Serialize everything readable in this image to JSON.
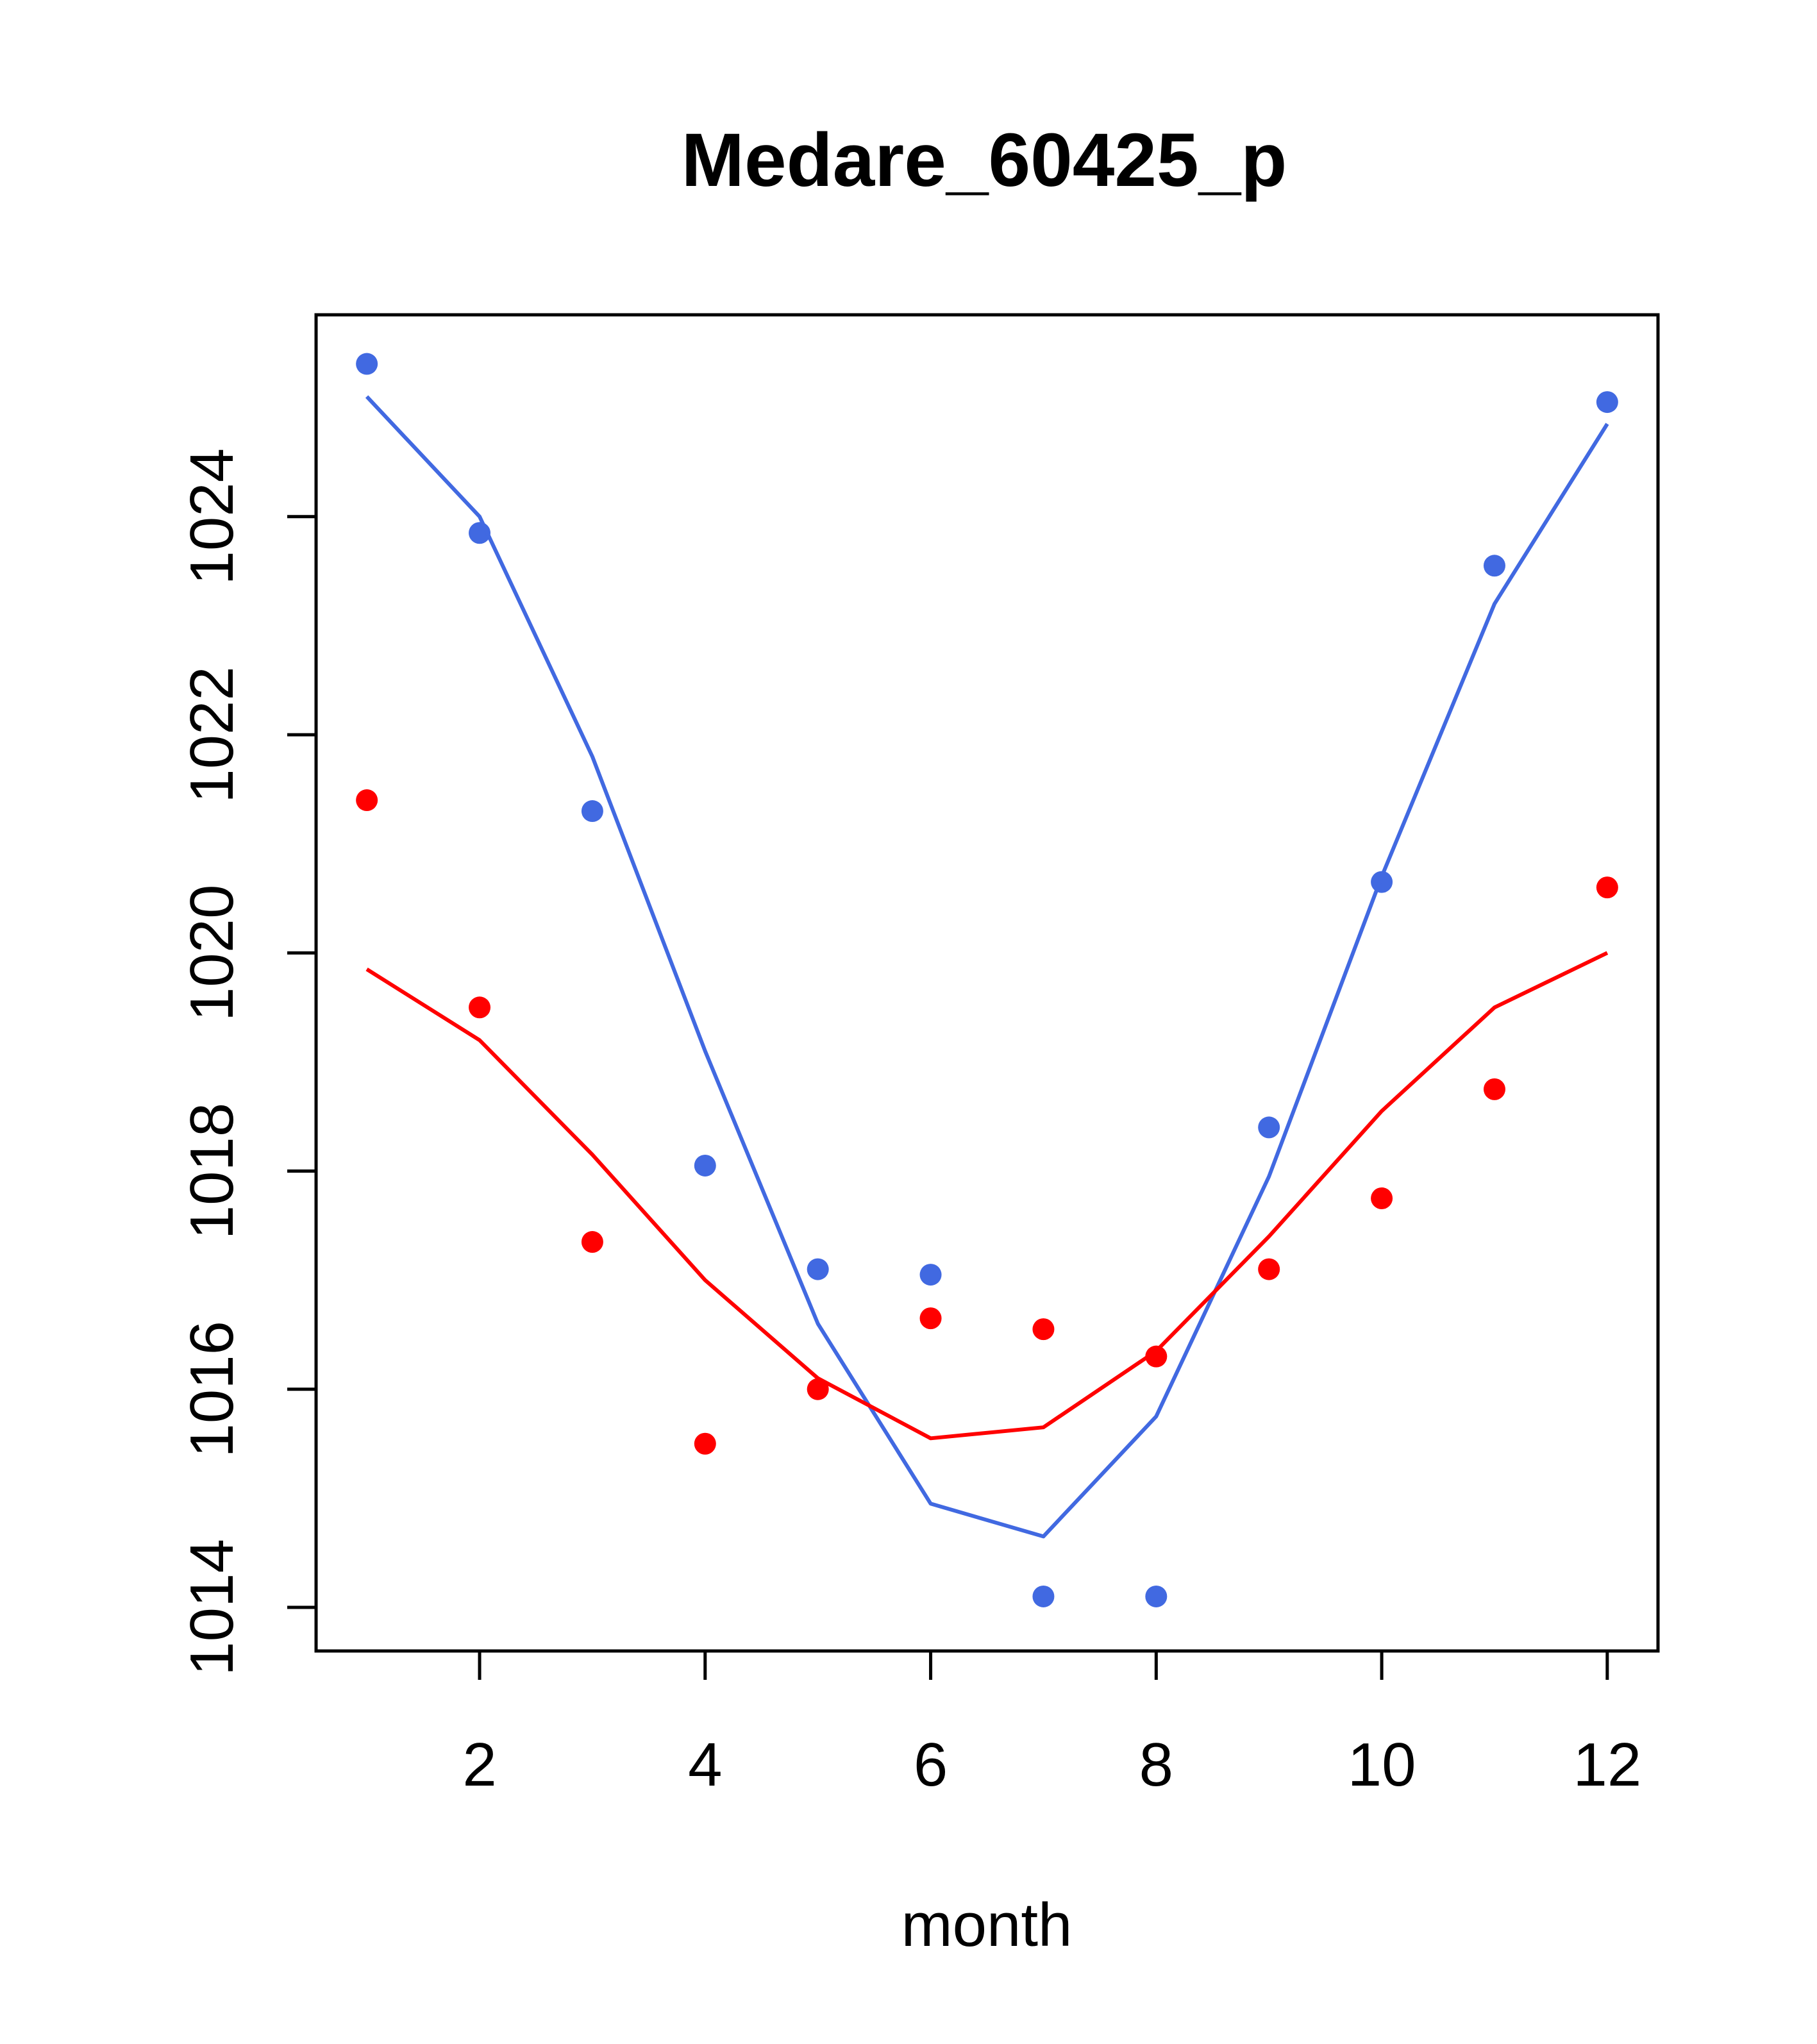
{
  "chart_data": {
    "type": "scatter",
    "title": "Medare_60425_p",
    "xlabel": "month",
    "ylabel": "",
    "xlim": [
      0.55,
      12.45
    ],
    "ylim": [
      1013.6,
      1025.85
    ],
    "x_ticks": [
      2,
      4,
      6,
      8,
      10,
      12
    ],
    "y_ticks": [
      1014,
      1016,
      1018,
      1020,
      1022,
      1024
    ],
    "x": [
      1,
      2,
      3,
      4,
      5,
      6,
      7,
      8,
      9,
      10,
      11,
      12
    ],
    "series": [
      {
        "name": "blue points",
        "kind": "points",
        "color": "#4169E1",
        "values": [
          1025.4,
          1023.85,
          1021.3,
          1018.05,
          1017.1,
          1017.05,
          1014.1,
          1014.1,
          1018.4,
          1020.65,
          1023.55,
          1025.05
        ]
      },
      {
        "name": "blue fit",
        "kind": "line",
        "color": "#4169E1",
        "values": [
          1025.1,
          1024.0,
          1021.8,
          1019.1,
          1016.6,
          1014.95,
          1014.65,
          1015.75,
          1017.95,
          1020.7,
          1023.2,
          1024.85
        ]
      },
      {
        "name": "red points",
        "kind": "points",
        "color": "#FF0000",
        "values": [
          1021.4,
          1019.5,
          1017.35,
          1015.5,
          1016.0,
          1016.65,
          1016.55,
          1016.3,
          1017.1,
          1017.75,
          1018.75,
          1020.6
        ]
      },
      {
        "name": "red fit",
        "kind": "line",
        "color": "#FF0000",
        "values": [
          1019.85,
          1019.2,
          1018.15,
          1017.0,
          1016.1,
          1015.55,
          1015.65,
          1016.35,
          1017.4,
          1018.55,
          1019.5,
          1020.0
        ]
      }
    ]
  }
}
